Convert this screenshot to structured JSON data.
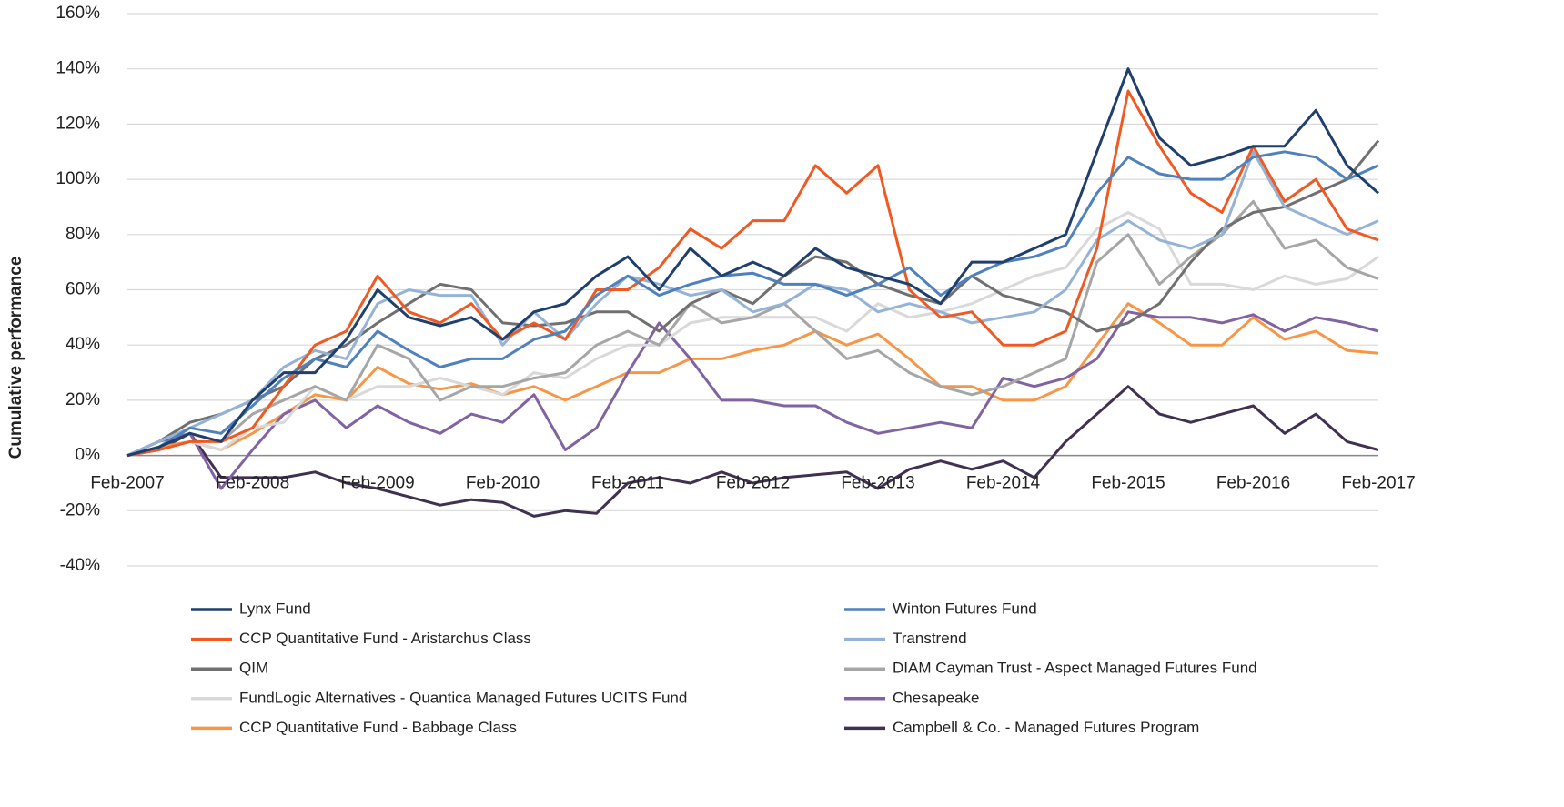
{
  "chart_data": {
    "type": "line",
    "y_label": "Cumulative performance",
    "categories": [
      "Feb-2007",
      null,
      null,
      null,
      "Feb-2008",
      null,
      null,
      null,
      "Feb-2009",
      null,
      null,
      null,
      "Feb-2010",
      null,
      null,
      null,
      "Feb-2011",
      null,
      null,
      null,
      "Feb-2012",
      null,
      null,
      null,
      "Feb-2013",
      null,
      null,
      null,
      "Feb-2014",
      null,
      null,
      null,
      "Feb-2015",
      null,
      null,
      null,
      "Feb-2016",
      null,
      null,
      null,
      "Feb-2017"
    ],
    "ylim": [
      -40,
      160
    ],
    "yticks": [
      {
        "value": -40,
        "label": "-40%"
      },
      {
        "value": -20,
        "label": "-20%"
      },
      {
        "value": 0,
        "label": "0%"
      },
      {
        "value": 20,
        "label": "20%"
      },
      {
        "value": 40,
        "label": "40%"
      },
      {
        "value": 60,
        "label": "60%"
      },
      {
        "value": 80,
        "label": "80%"
      },
      {
        "value": 100,
        "label": "100%"
      },
      {
        "value": 120,
        "label": "120%"
      },
      {
        "value": 140,
        "label": "140%"
      },
      {
        "value": 160,
        "label": "160%"
      }
    ],
    "grid": true,
    "legend": "bottom",
    "series": [
      {
        "name": "Lynx Fund",
        "color": "#1f3f6e",
        "values": [
          0,
          3,
          8,
          5,
          20,
          30,
          30,
          42,
          60,
          50,
          47,
          50,
          42,
          52,
          55,
          65,
          72,
          60,
          75,
          65,
          70,
          65,
          75,
          68,
          65,
          62,
          55,
          70,
          70,
          75,
          80,
          110,
          140,
          115,
          105,
          108,
          112,
          112,
          125,
          105,
          95
        ]
      },
      {
        "name": "Winton Futures Fund",
        "color": "#4f81bd",
        "values": [
          0,
          3,
          10,
          8,
          18,
          28,
          35,
          32,
          45,
          38,
          32,
          35,
          35,
          42,
          45,
          58,
          65,
          58,
          62,
          65,
          66,
          62,
          62,
          58,
          62,
          68,
          58,
          65,
          70,
          72,
          76,
          95,
          108,
          102,
          100,
          100,
          108,
          110,
          108,
          100,
          105
        ]
      },
      {
        "name": "CCP Quantitative Fund - Aristarchus Class",
        "color": "#f05a22",
        "values": [
          0,
          2,
          5,
          5,
          10,
          25,
          40,
          45,
          65,
          52,
          48,
          55,
          42,
          48,
          42,
          60,
          60,
          68,
          82,
          75,
          85,
          85,
          105,
          95,
          105,
          60,
          50,
          52,
          40,
          40,
          45,
          75,
          132,
          112,
          95,
          88,
          112,
          92,
          100,
          82,
          78
        ]
      },
      {
        "name": "Transtrend",
        "color": "#95b3d7",
        "values": [
          0,
          5,
          10,
          15,
          20,
          32,
          38,
          35,
          55,
          60,
          58,
          58,
          40,
          52,
          42,
          55,
          65,
          62,
          58,
          60,
          52,
          55,
          62,
          60,
          52,
          55,
          52,
          48,
          50,
          52,
          60,
          78,
          85,
          78,
          75,
          80,
          110,
          90,
          85,
          80,
          85
        ]
      },
      {
        "name": "QIM",
        "color": "#707070",
        "values": [
          0,
          5,
          12,
          15,
          20,
          25,
          35,
          40,
          48,
          55,
          62,
          60,
          48,
          47,
          48,
          52,
          52,
          45,
          55,
          60,
          55,
          65,
          72,
          70,
          62,
          58,
          55,
          65,
          58,
          55,
          52,
          45,
          48,
          55,
          70,
          82,
          88,
          90,
          95,
          100,
          114
        ]
      },
      {
        "name": "DIAM Cayman Trust - Aspect Managed Futures Fund",
        "color": "#a6a6a6",
        "values": [
          0,
          3,
          8,
          5,
          15,
          20,
          25,
          20,
          40,
          35,
          20,
          25,
          25,
          28,
          30,
          40,
          45,
          40,
          55,
          48,
          50,
          55,
          45,
          35,
          38,
          30,
          25,
          22,
          25,
          30,
          35,
          70,
          80,
          62,
          72,
          80,
          92,
          75,
          78,
          68,
          64
        ]
      },
      {
        "name": "FundLogic Alternatives - Quantica Managed Futures UCITS Fund",
        "color": "#d9d9d9",
        "values": [
          0,
          2,
          5,
          2,
          10,
          12,
          25,
          20,
          25,
          25,
          28,
          25,
          22,
          30,
          28,
          35,
          40,
          40,
          48,
          50,
          50,
          50,
          50,
          45,
          55,
          50,
          52,
          55,
          60,
          65,
          68,
          82,
          88,
          82,
          62,
          62,
          60,
          65,
          62,
          64,
          72
        ]
      },
      {
        "name": "Chesapeake",
        "color": "#8064a2",
        "values": [
          0,
          5,
          8,
          -12,
          2,
          15,
          20,
          10,
          18,
          12,
          8,
          15,
          12,
          22,
          2,
          10,
          30,
          48,
          35,
          20,
          20,
          18,
          18,
          12,
          8,
          10,
          12,
          10,
          28,
          25,
          28,
          35,
          52,
          50,
          50,
          48,
          51,
          45,
          50,
          48,
          45
        ]
      },
      {
        "name": "CCP Quantitative Fund - Babbage Class",
        "color": "#f79646",
        "values": [
          0,
          3,
          5,
          2,
          8,
          15,
          22,
          20,
          32,
          26,
          24,
          26,
          22,
          25,
          20,
          25,
          30,
          30,
          35,
          35,
          38,
          40,
          45,
          40,
          44,
          35,
          25,
          25,
          20,
          20,
          25,
          40,
          55,
          48,
          40,
          40,
          50,
          42,
          45,
          38,
          37
        ]
      },
      {
        "name": "Campbell & Co. - Managed Futures Program",
        "color": "#403152",
        "values": [
          0,
          2,
          8,
          -8,
          -8,
          -8,
          -6,
          -10,
          -12,
          -15,
          -18,
          -16,
          -17,
          -22,
          -20,
          -21,
          -10,
          -8,
          -10,
          -6,
          -10,
          -8,
          -7,
          -6,
          -12,
          -5,
          -2,
          -5,
          -2,
          -8,
          5,
          15,
          25,
          15,
          12,
          15,
          18,
          8,
          15,
          5,
          2
        ]
      }
    ]
  }
}
